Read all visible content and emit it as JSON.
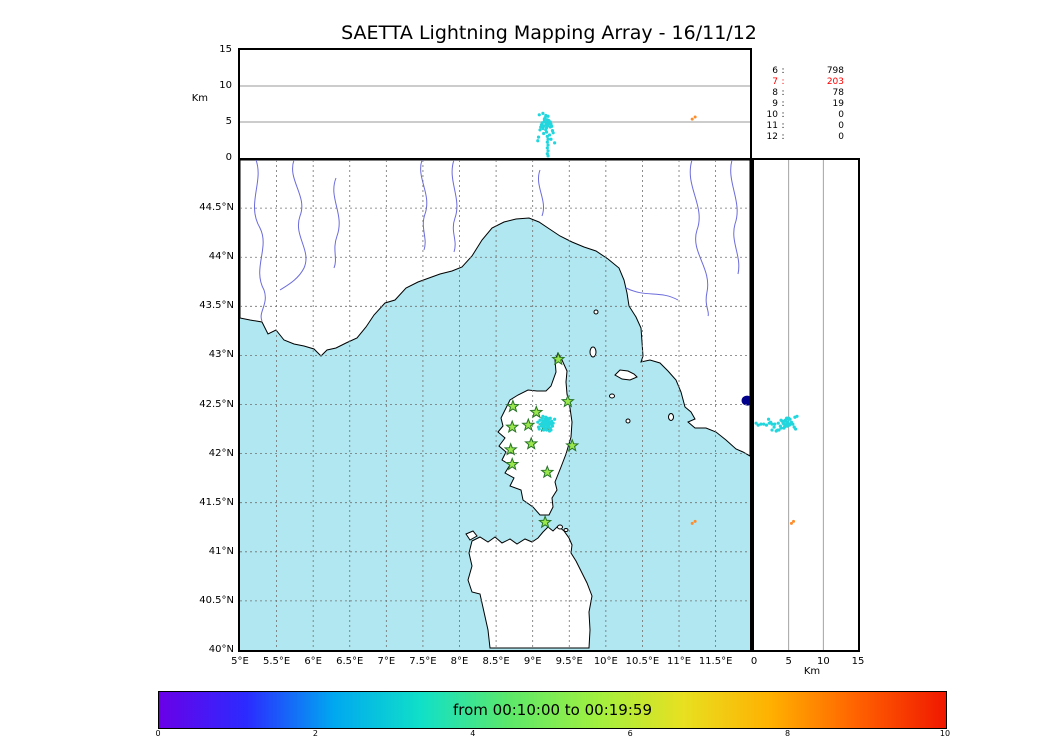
{
  "chart_data": {
    "type": "scatter",
    "title": "SAETTA Lightning Mapping Array - 16/11/12",
    "stations_lonlat": [
      [
        9.35,
        42.96
      ],
      [
        8.73,
        42.48
      ],
      [
        9.05,
        42.42
      ],
      [
        9.48,
        42.53
      ],
      [
        8.72,
        42.27
      ],
      [
        8.94,
        42.29
      ],
      [
        9.17,
        42.28
      ],
      [
        8.98,
        42.1
      ],
      [
        8.7,
        42.04
      ],
      [
        9.54,
        42.08
      ],
      [
        8.72,
        41.89
      ],
      [
        9.2,
        41.81
      ],
      [
        9.17,
        41.3
      ]
    ],
    "sources_cyan_lonlatalt": [
      [
        9.13,
        42.31,
        4.9
      ],
      [
        9.16,
        42.29,
        5.1
      ],
      [
        9.18,
        42.33,
        4.6
      ],
      [
        9.2,
        42.3,
        5.3
      ],
      [
        9.22,
        42.28,
        4.8
      ],
      [
        9.15,
        42.27,
        4.4
      ],
      [
        9.19,
        42.31,
        4.2
      ],
      [
        9.23,
        42.32,
        4.9
      ],
      [
        9.17,
        42.35,
        5.0
      ],
      [
        9.21,
        42.34,
        4.5
      ],
      [
        9.14,
        42.33,
        4.1
      ],
      [
        9.25,
        42.3,
        4.7
      ],
      [
        9.24,
        42.26,
        4.3
      ],
      [
        9.12,
        42.28,
        4.6
      ],
      [
        9.18,
        42.26,
        3.9
      ],
      [
        9.2,
        42.36,
        4.8
      ],
      [
        9.16,
        42.32,
        5.4
      ],
      [
        9.22,
        42.35,
        5.2
      ],
      [
        9.26,
        42.33,
        4.4
      ],
      [
        9.11,
        42.3,
        4.3
      ],
      [
        9.19,
        42.24,
        3.6
      ],
      [
        9.24,
        42.36,
        5.0
      ],
      [
        9.27,
        42.28,
        3.8
      ],
      [
        9.13,
        42.36,
        4.7
      ],
      [
        9.17,
        42.3,
        5.6
      ],
      [
        9.21,
        42.27,
        5.8
      ],
      [
        9.15,
        42.24,
        3.4
      ],
      [
        9.23,
        42.23,
        3.2
      ],
      [
        9.1,
        42.34,
        3.9
      ],
      [
        9.28,
        42.31,
        3.5
      ],
      [
        9.08,
        42.27,
        2.9
      ],
      [
        9.18,
        42.37,
        5.9
      ],
      [
        9.25,
        42.24,
        2.6
      ],
      [
        9.07,
        42.32,
        2.4
      ],
      [
        9.3,
        42.35,
        2.1
      ],
      [
        9.14,
        42.38,
        6.2
      ],
      [
        9.09,
        42.25,
        6.0
      ],
      [
        9.2,
        42.3,
        3.0
      ],
      [
        9.21,
        42.3,
        2.6
      ],
      [
        9.2,
        42.31,
        2.2
      ],
      [
        9.21,
        42.29,
        1.8
      ],
      [
        9.2,
        42.3,
        1.4
      ],
      [
        9.21,
        42.3,
        1.0
      ],
      [
        9.2,
        42.29,
        0.6
      ],
      [
        9.21,
        42.31,
        0.3
      ]
    ],
    "sources_orange_lonlatalt": [
      [
        11.22,
        41.31,
        5.7
      ],
      [
        11.18,
        41.29,
        5.4
      ]
    ],
    "lake_lonlat": [
      11.93,
      42.54
    ],
    "station_count_rows": [
      [
        "6",
        "798"
      ],
      [
        "7",
        "203"
      ],
      [
        "8",
        "78"
      ],
      [
        "9",
        "19"
      ],
      [
        "10",
        "0"
      ],
      [
        "11",
        "0"
      ],
      [
        "12",
        "0"
      ]
    ],
    "highlight_row_index": 1
  },
  "axes": {
    "km_label": "Km",
    "lon_range": [
      5.0,
      11.97
    ],
    "lat_range": [
      40.0,
      44.99
    ],
    "alt_range": [
      0,
      15
    ],
    "lon_tick_values": [
      5,
      5.5,
      6,
      6.5,
      7,
      7.5,
      8,
      8.5,
      9,
      9.5,
      10,
      10.5,
      11,
      11.5
    ],
    "lon_tick_labels": [
      "5°E",
      "5.5°E",
      "6°E",
      "6.5°E",
      "7°E",
      "7.5°E",
      "8°E",
      "8.5°E",
      "9°E",
      "9.5°E",
      "10°E",
      "10.5°E",
      "11°E",
      "11.5°E"
    ],
    "lat_tick_values": [
      40,
      40.5,
      41,
      41.5,
      42,
      42.5,
      43,
      43.5,
      44,
      44.5
    ],
    "lat_tick_labels": [
      "40°N",
      "40.5°N",
      "41°N",
      "41.5°N",
      "42°N",
      "42.5°N",
      "43°N",
      "43.5°N",
      "44°N",
      "44.5°N"
    ],
    "alt_tick_values": [
      0,
      5,
      10,
      15
    ],
    "alt_tick_labels": [
      "0",
      "5",
      "10",
      "15"
    ],
    "alt_grid_values": [
      5,
      10
    ]
  },
  "colorbar": {
    "label": "from 00:10:00 to 00:19:59",
    "tick_values": [
      0,
      2,
      4,
      6,
      8,
      10
    ],
    "tick_labels": [
      "0",
      "2",
      "4",
      "6",
      "8",
      "10"
    ],
    "range": [
      0,
      10
    ],
    "gradient": [
      "#6a00e8",
      "#2b2bff",
      "#00a8f0",
      "#10e0c8",
      "#5ce86a",
      "#a0f040",
      "#e8e020",
      "#ffb000",
      "#ff6000",
      "#f01800"
    ]
  },
  "colors": {
    "sea": "#b0e7f0",
    "land": "#ffffff",
    "coast": "#000000",
    "grid": "#707070",
    "panel_grid": "#999999",
    "river": "#6b6bdb",
    "station_fill": "#99e64d",
    "station_edge": "#267326",
    "source_main": "#22d6de",
    "source_late": "#ff8c2a",
    "lake": "#00008b",
    "highlight": "#ff0000"
  }
}
